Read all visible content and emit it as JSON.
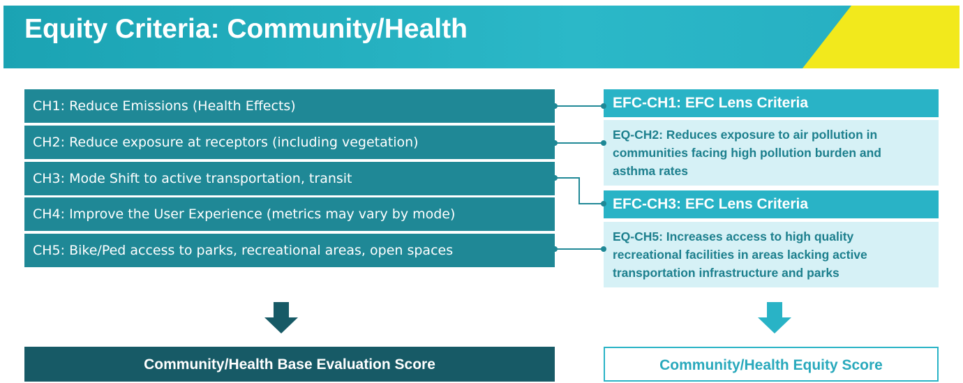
{
  "header": {
    "title": "Equity Criteria: Community/Health"
  },
  "criteria": [
    "CH1: Reduce Emissions (Health Effects)",
    "CH2: Reduce exposure at receptors (including vegetation)",
    "CH3: Mode Shift to active transportation, transit",
    "CH4: Improve the User Experience (metrics may vary by mode)",
    "CH5: Bike/Ped access to parks, recreational areas, open spaces"
  ],
  "lens": [
    {
      "heading": "EFC-CH1: EFC Lens Criteria",
      "description": "EQ-CH2: Reduces exposure to air pollution in communities facing high pollution burden and asthma rates"
    },
    {
      "heading": "EFC-CH3: EFC Lens Criteria",
      "description": "EQ-CH5: Increases access to high quality recreational facilities in areas lacking active transportation infrastructure and parks"
    }
  ],
  "scores": {
    "base": "Community/Health Base Evaluation Score",
    "equity": "Community/Health Equity Score"
  }
}
